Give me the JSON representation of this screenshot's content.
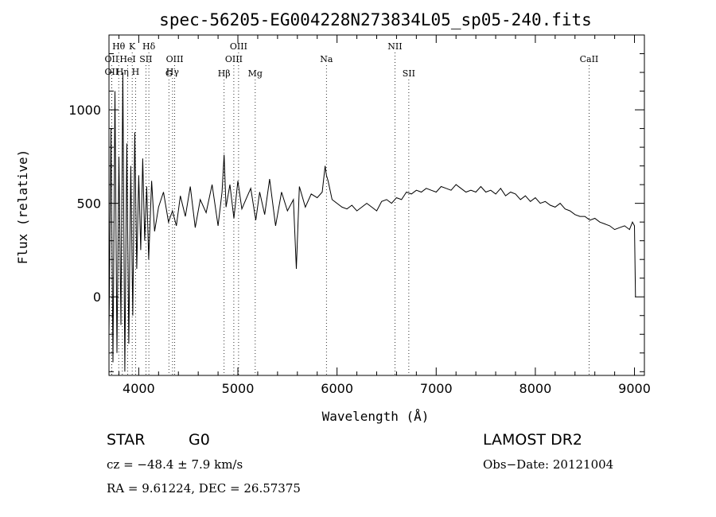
{
  "chart_data": {
    "type": "line",
    "title": "spec-56205-EG004228N273834L05_sp05-240.fits",
    "xlabel": "Wavelength (Å)",
    "ylabel": "Flux (relative)",
    "xlim": [
      3700,
      9100
    ],
    "ylim": [
      -420,
      1400
    ],
    "x_ticks": [
      4000,
      5000,
      6000,
      7000,
      8000,
      9000
    ],
    "y_ticks": [
      0,
      500,
      1000
    ],
    "grid": false,
    "series": [
      {
        "x": [
          3700,
          3720,
          3740,
          3760,
          3780,
          3800,
          3820,
          3840,
          3860,
          3880,
          3900,
          3920,
          3940,
          3960,
          3980,
          4000,
          4020,
          4040,
          4060,
          4080,
          4100,
          4130,
          4160,
          4200,
          4250,
          4300,
          4340,
          4380,
          4420,
          4470,
          4520,
          4570,
          4620,
          4680,
          4740,
          4800,
          4840,
          4861,
          4880,
          4920,
          4960,
          5000,
          5040,
          5080,
          5130,
          5180,
          5220,
          5270,
          5320,
          5380,
          5440,
          5500,
          5560,
          5590,
          5620,
          5680,
          5740,
          5800,
          5850,
          5880,
          5893,
          5910,
          5950,
          6000,
          6050,
          6100,
          6150,
          6200,
          6250,
          6300,
          6350,
          6400,
          6450,
          6500,
          6550,
          6600,
          6650,
          6700,
          6750,
          6800,
          6850,
          6900,
          6950,
          7000,
          7050,
          7100,
          7150,
          7200,
          7250,
          7300,
          7350,
          7400,
          7450,
          7500,
          7550,
          7600,
          7650,
          7700,
          7750,
          7800,
          7850,
          7900,
          7950,
          8000,
          8050,
          8100,
          8150,
          8200,
          8250,
          8300,
          8350,
          8400,
          8450,
          8500,
          8550,
          8600,
          8650,
          8700,
          8750,
          8800,
          8850,
          8900,
          8950,
          8980,
          9000,
          9010
        ],
        "y": [
          -200,
          900,
          -350,
          1100,
          -300,
          750,
          -150,
          1200,
          -400,
          820,
          -250,
          700,
          -100,
          880,
          150,
          650,
          250,
          740,
          300,
          590,
          200,
          620,
          350,
          480,
          560,
          400,
          460,
          380,
          540,
          430,
          590,
          370,
          520,
          450,
          600,
          380,
          560,
          760,
          480,
          600,
          420,
          620,
          470,
          520,
          580,
          410,
          560,
          440,
          630,
          380,
          560,
          460,
          520,
          150,
          590,
          480,
          550,
          530,
          560,
          700,
          650,
          620,
          520,
          500,
          480,
          470,
          490,
          460,
          480,
          500,
          480,
          460,
          510,
          520,
          500,
          530,
          520,
          560,
          550,
          570,
          560,
          580,
          570,
          560,
          590,
          580,
          570,
          600,
          580,
          560,
          570,
          560,
          590,
          560,
          570,
          550,
          580,
          540,
          560,
          550,
          520,
          540,
          510,
          530,
          500,
          510,
          490,
          480,
          500,
          470,
          460,
          440,
          430,
          430,
          410,
          420,
          400,
          390,
          380,
          360,
          370,
          380,
          360,
          400,
          380,
          0
        ]
      }
    ],
    "line_markers": [
      {
        "label": "Hθ",
        "x": 3798,
        "row": 1
      },
      {
        "label": "K",
        "x": 3934,
        "row": 1
      },
      {
        "label": "Hδ",
        "x": 4102,
        "row": 1
      },
      {
        "label": "OIII",
        "x": 5007,
        "row": 1
      },
      {
        "label": "NII",
        "x": 6584,
        "row": 1
      },
      {
        "label": "OII",
        "x": 3727,
        "row": 2
      },
      {
        "label": "HeI",
        "x": 3889,
        "row": 2
      },
      {
        "label": "SII",
        "x": 4072,
        "row": 2
      },
      {
        "label": "OIII",
        "x": 4363,
        "row": 2
      },
      {
        "label": "Hγ",
        "x": 4341,
        "row": 3
      },
      {
        "label": "OIII",
        "x": 4959,
        "row": 2
      },
      {
        "label": "Na",
        "x": 5893,
        "row": 2
      },
      {
        "label": "CaII",
        "x": 8542,
        "row": 2
      },
      {
        "label": "OII",
        "x": 3727,
        "row": 3
      },
      {
        "label": "Hη",
        "x": 3835,
        "row": 3
      },
      {
        "label": "H",
        "x": 3968,
        "row": 3
      },
      {
        "label": "G",
        "x": 4304,
        "row": 4
      },
      {
        "label": "Hβ",
        "x": 4861,
        "row": 4
      },
      {
        "label": "Mg",
        "x": 5175,
        "row": 4
      },
      {
        "label": "SII",
        "x": 6724,
        "row": 4
      }
    ]
  },
  "info": {
    "object_class": "STAR",
    "subclass": "G0",
    "survey": "LAMOST DR2",
    "cz": "cz = −48.4 ± 7.9 km/s",
    "obs_date": "Obs−Date: 20121004",
    "radec": "RA =    9.61224, DEC =   26.57375"
  }
}
